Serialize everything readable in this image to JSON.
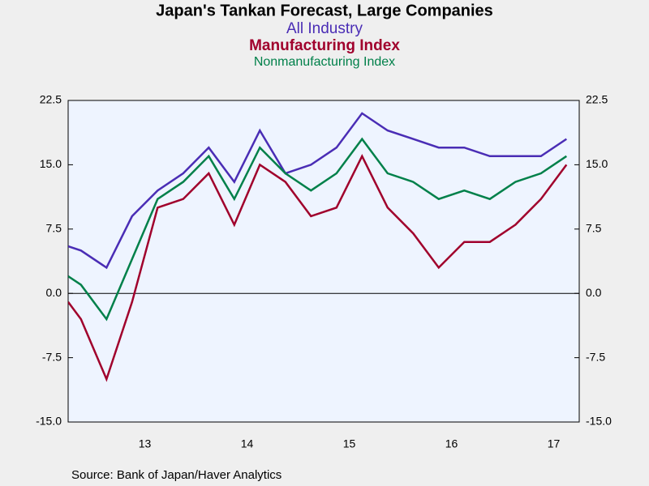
{
  "chart_data": {
    "type": "line",
    "title": "Japan's Tankan Forecast, Large Companies",
    "subtitles": [
      "All Industry",
      "Manufacturing Index",
      "Nonmanufacturing Index"
    ],
    "source": "Source:  Bank of Japan/Haver Analytics",
    "x": [
      2012.75,
      2012.875,
      2013.125,
      2013.375,
      2013.625,
      2013.875,
      2014.125,
      2014.375,
      2014.625,
      2014.875,
      2015.125,
      2015.375,
      2015.625,
      2015.875,
      2016.125,
      2016.375,
      2016.625,
      2016.875,
      2017.125,
      2017.375,
      2017.625
    ],
    "series": [
      {
        "name": "All Industry",
        "color": "#4a2db5",
        "values": [
          5.5,
          5,
          3,
          9,
          12,
          14,
          17,
          13,
          19,
          14,
          15,
          17,
          21,
          19,
          18,
          17,
          17,
          16,
          16,
          16,
          18
        ]
      },
      {
        "name": "Manufacturing Index",
        "color": "#a0002c",
        "values": [
          -1,
          -3,
          -10,
          -1,
          10,
          11,
          14,
          8,
          15,
          13,
          9,
          10,
          16,
          10,
          7,
          3,
          6,
          6,
          8,
          11,
          15
        ]
      },
      {
        "name": "Nonmanufacturing Index",
        "color": "#00804a",
        "values": [
          2,
          1,
          -3,
          4,
          11,
          13,
          16,
          11,
          17,
          14,
          12,
          14,
          18,
          14,
          13,
          11,
          12,
          11,
          13,
          14,
          16
        ]
      }
    ],
    "xlim": [
      2012.75,
      2017.75
    ],
    "xticks": [
      {
        "value": 2013.5,
        "label": "13"
      },
      {
        "value": 2014.5,
        "label": "14"
      },
      {
        "value": 2015.5,
        "label": "15"
      },
      {
        "value": 2016.5,
        "label": "16"
      },
      {
        "value": 2017.5,
        "label": "17"
      }
    ],
    "ylim": [
      -15,
      22.5
    ],
    "yticks": [
      {
        "value": -15,
        "label": "-15.0"
      },
      -7.5,
      {
        "value": 0,
        "label": "0.0"
      },
      7.5,
      {
        "value": 15,
        "label": "15.0"
      },
      22.5
    ]
  }
}
